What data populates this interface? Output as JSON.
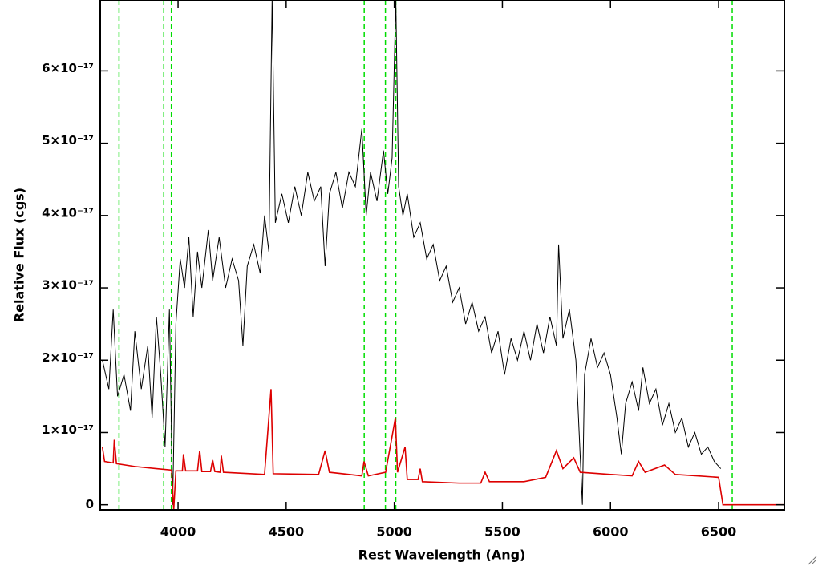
{
  "chart_data": {
    "type": "line",
    "xlabel": "Rest Wavelength (Ang)",
    "ylabel": "Relative Flux (cgs)",
    "xlim": [
      3640,
      6804
    ],
    "ylim": [
      -7e-19,
      6.98e-17
    ],
    "xticks": [
      4000,
      4500,
      5000,
      5500,
      6000,
      6500
    ],
    "yticks": [
      0,
      {
        "value": 1e-17,
        "label": "1×10⁻¹⁷"
      },
      {
        "value": 2e-17,
        "label": "2×10⁻¹⁷"
      },
      {
        "value": 3e-17,
        "label": "3×10⁻¹⁷"
      },
      {
        "value": 4e-17,
        "label": "4×10⁻¹⁷"
      },
      {
        "value": 5e-17,
        "label": "5×10⁻¹⁷"
      },
      {
        "value": 6e-17,
        "label": "6×10⁻¹⁷"
      }
    ],
    "vlines": [
      3727,
      3934,
      3969,
      4861,
      4959,
      5007,
      6563
    ],
    "vline_color": "#00dd00",
    "series": [
      {
        "color": "#000000",
        "x": [
          3650,
          3680,
          3700,
          3720,
          3750,
          3780,
          3800,
          3830,
          3860,
          3880,
          3900,
          3920,
          3940,
          3960,
          3975,
          3990,
          4010,
          4030,
          4050,
          4070,
          4090,
          4110,
          4140,
          4160,
          4190,
          4220,
          4250,
          4280,
          4300,
          4320,
          4350,
          4380,
          4400,
          4420,
          4435,
          4450,
          4480,
          4510,
          4540,
          4570,
          4600,
          4630,
          4660,
          4680,
          4700,
          4730,
          4760,
          4790,
          4820,
          4850,
          4870,
          4890,
          4920,
          4950,
          4970,
          4990,
          5007,
          5020,
          5040,
          5060,
          5090,
          5120,
          5150,
          5180,
          5210,
          5240,
          5270,
          5300,
          5330,
          5360,
          5390,
          5420,
          5450,
          5480,
          5510,
          5540,
          5570,
          5600,
          5630,
          5660,
          5690,
          5720,
          5750,
          5760,
          5780,
          5810,
          5840,
          5870,
          5880,
          5910,
          5940,
          5970,
          6000,
          6030,
          6050,
          6070,
          6100,
          6130,
          6150,
          6180,
          6210,
          6240,
          6270,
          6300,
          6330,
          6360,
          6390,
          6420,
          6450,
          6480,
          6510
        ],
        "values": [
          2e-17,
          1.6e-17,
          2.7e-17,
          1.5e-17,
          1.8e-17,
          1.3e-17,
          2.4e-17,
          1.6e-17,
          2.2e-17,
          1.2e-17,
          2.6e-17,
          1.8e-17,
          8e-18,
          2.7e-17,
          0.0,
          2.5e-17,
          3.4e-17,
          3e-17,
          3.7e-17,
          2.6e-17,
          3.5e-17,
          3e-17,
          3.8e-17,
          3.1e-17,
          3.7e-17,
          3e-17,
          3.4e-17,
          3.1e-17,
          2.2e-17,
          3.3e-17,
          3.6e-17,
          3.2e-17,
          4e-17,
          3.5e-17,
          7e-17,
          3.9e-17,
          4.3e-17,
          3.9e-17,
          4.4e-17,
          4e-17,
          4.6e-17,
          4.2e-17,
          4.4e-17,
          3.3e-17,
          4.3e-17,
          4.6e-17,
          4.1e-17,
          4.6e-17,
          4.4e-17,
          5.2e-17,
          4e-17,
          4.6e-17,
          4.2e-17,
          4.9e-17,
          4.3e-17,
          4.8e-17,
          7e-17,
          4.4e-17,
          4e-17,
          4.3e-17,
          3.7e-17,
          3.9e-17,
          3.4e-17,
          3.6e-17,
          3.1e-17,
          3.3e-17,
          2.8e-17,
          3e-17,
          2.5e-17,
          2.8e-17,
          2.4e-17,
          2.6e-17,
          2.1e-17,
          2.4e-17,
          1.8e-17,
          2.3e-17,
          2e-17,
          2.4e-17,
          2e-17,
          2.5e-17,
          2.1e-17,
          2.6e-17,
          2.2e-17,
          3.6e-17,
          2.3e-17,
          2.7e-17,
          2e-17,
          0.0,
          1.8e-17,
          2.3e-17,
          1.9e-17,
          2.1e-17,
          1.8e-17,
          1.2e-17,
          7e-18,
          1.4e-17,
          1.7e-17,
          1.3e-17,
          1.9e-17,
          1.4e-17,
          1.6e-17,
          1.1e-17,
          1.4e-17,
          1e-17,
          1.2e-17,
          8e-18,
          1e-17,
          7e-18,
          8e-18,
          6e-18,
          5e-18
        ]
      },
      {
        "color": "#dd0000",
        "x": [
          3650,
          3660,
          3700,
          3705,
          3715,
          3800,
          3900,
          3970,
          3980,
          3990,
          4020,
          4025,
          4035,
          4090,
          4100,
          4110,
          4150,
          4160,
          4170,
          4195,
          4200,
          4210,
          4400,
          4430,
          4440,
          4650,
          4680,
          4700,
          4850,
          4860,
          4880,
          4960,
          5005,
          5015,
          5050,
          5060,
          5110,
          5120,
          5130,
          5300,
          5400,
          5420,
          5440,
          5600,
          5700,
          5750,
          5780,
          5830,
          5860,
          6000,
          6100,
          6130,
          6160,
          6250,
          6300,
          6400,
          6500,
          6520,
          6800
        ],
        "values": [
          8e-18,
          6e-18,
          5.8e-18,
          9e-18,
          5.7e-18,
          5.3e-18,
          5e-18,
          4.8e-18,
          -7e-19,
          4.7e-18,
          4.7e-18,
          7e-18,
          4.7e-18,
          4.7e-18,
          7.5e-18,
          4.6e-18,
          4.6e-18,
          6.2e-18,
          4.6e-18,
          4.5e-18,
          6.8e-18,
          4.5e-18,
          4.2e-18,
          1.6e-17,
          4.3e-18,
          4.2e-18,
          7.5e-18,
          4.5e-18,
          4e-18,
          6e-18,
          4e-18,
          4.5e-18,
          1.2e-17,
          4.5e-18,
          8e-18,
          3.5e-18,
          3.5e-18,
          5e-18,
          3.2e-18,
          3e-18,
          3e-18,
          4.5e-18,
          3.2e-18,
          3.2e-18,
          3.8e-18,
          7.5e-18,
          5e-18,
          6.5e-18,
          4.5e-18,
          4.2e-18,
          4e-18,
          6e-18,
          4.5e-18,
          5.5e-18,
          4.2e-18,
          4e-18,
          3.8e-18,
          0,
          0
        ]
      }
    ]
  }
}
